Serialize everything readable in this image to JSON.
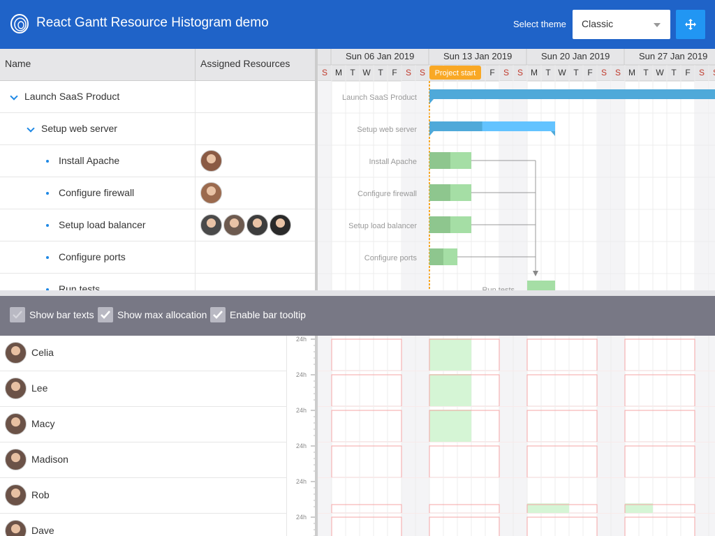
{
  "header": {
    "title": "React Gantt Resource Histogram demo",
    "theme_label": "Select theme",
    "theme_value": "Classic"
  },
  "grid": {
    "col_name": "Name",
    "col_resources": "Assigned Resources",
    "rows": [
      {
        "name": "Launch SaaS Product",
        "level": 0,
        "expanded": true,
        "avatars": []
      },
      {
        "name": "Setup web server",
        "level": 1,
        "expanded": true,
        "avatars": []
      },
      {
        "name": "Install Apache",
        "level": 2,
        "avatars": [
          "#8a5a44"
        ]
      },
      {
        "name": "Configure firewall",
        "level": 2,
        "avatars": [
          "#9b6a4e"
        ]
      },
      {
        "name": "Setup load balancer",
        "level": 2,
        "avatars": [
          "#4a4a4a",
          "#6d5a4f",
          "#3d3d3d",
          "#2a2a2a"
        ]
      },
      {
        "name": "Configure ports",
        "level": 2,
        "avatars": []
      },
      {
        "name": "Run tests",
        "level": 2,
        "avatars": []
      }
    ]
  },
  "timeline": {
    "weeks": [
      "Sun 06 Jan 2019",
      "Sun 13 Jan 2019",
      "Sun 20 Jan 2019",
      "Sun 27 Jan 2019"
    ],
    "first_day_label": "S",
    "days": [
      "S",
      "M",
      "T",
      "W",
      "T",
      "F",
      "S"
    ],
    "project_start_label": "Project start"
  },
  "tasks": [
    {
      "name": "Launch SaaS Product",
      "type": "parent",
      "start_day": 11,
      "end_day": 42
    },
    {
      "name": "Setup web server",
      "type": "parent",
      "start_day": 11,
      "end_day": 20,
      "progress": 0.42
    },
    {
      "name": "Install Apache",
      "type": "task",
      "start_day": 11,
      "end_day": 14,
      "progress": 0.5
    },
    {
      "name": "Configure firewall",
      "type": "task",
      "start_day": 11,
      "end_day": 14,
      "progress": 0.5
    },
    {
      "name": "Setup load balancer",
      "type": "task",
      "start_day": 11,
      "end_day": 14,
      "progress": 0.5
    },
    {
      "name": "Configure ports",
      "type": "task",
      "start_day": 11,
      "end_day": 13,
      "progress": 0.5
    },
    {
      "name": "Run tests",
      "type": "task",
      "start_day": 18,
      "end_day": 20,
      "progress": 0
    }
  ],
  "toolbar": {
    "show_bar_texts": "Show bar texts",
    "show_max_allocation": "Show max allocation",
    "enable_bar_tooltip": "Enable bar tooltip"
  },
  "resources": [
    {
      "name": "Celia",
      "scale": "24h",
      "bars": [
        [
          11,
          14,
          1
        ]
      ]
    },
    {
      "name": "Lee",
      "scale": "24h",
      "bars": [
        [
          11,
          14,
          1
        ]
      ]
    },
    {
      "name": "Macy",
      "scale": "24h",
      "bars": [
        [
          11,
          14,
          1
        ]
      ]
    },
    {
      "name": "Madison",
      "scale": "24h",
      "bars": []
    },
    {
      "name": "Rob",
      "scale": "24h",
      "bars": [
        [
          18,
          21,
          0.3
        ],
        [
          25,
          27,
          0.3
        ]
      ],
      "low": true
    },
    {
      "name": "Dave",
      "scale": "24h",
      "bars": []
    }
  ],
  "colors": {
    "accent": "#1f63c8",
    "task": "#a5dea5",
    "task_progress": "#8ec68e",
    "parent": "#63c3ff",
    "parent_progress": "#4fa9d9",
    "alloc": "#f5a5a5",
    "hist": "#d5f5d5",
    "start": "#f9a825"
  }
}
